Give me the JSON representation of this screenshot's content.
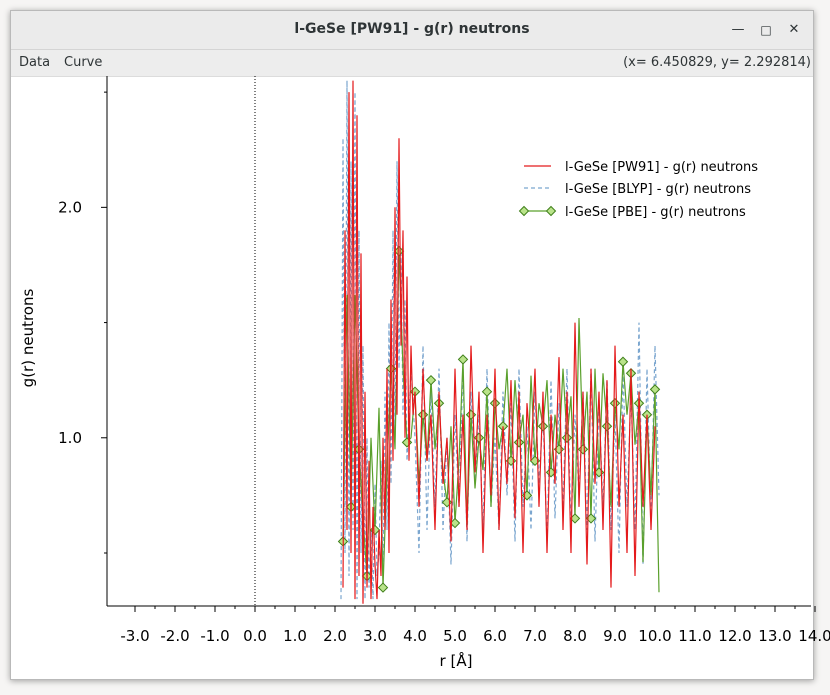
{
  "window": {
    "title": "l-GeSe [PW91] - g(r) neutrons",
    "minimize_glyph": "—",
    "maximize_glyph": "□",
    "close_glyph": "✕"
  },
  "menubar": {
    "items": [
      "Data",
      "Curve"
    ],
    "coordinates": "(x= 6.450829, y= 2.292814)"
  },
  "chart_data": {
    "type": "line",
    "title": "",
    "xlabel": "r [Å]",
    "ylabel": "g(r) neutrons",
    "xlim": [
      -3.7,
      13.9
    ],
    "ylim": [
      0.27,
      2.57
    ],
    "x_ticks": [
      -3.0,
      -2.0,
      -1.0,
      0.0,
      1.0,
      2.0,
      3.0,
      4.0,
      5.0,
      6.0,
      7.0,
      8.0,
      9.0,
      10.0,
      11.0,
      12.0,
      13.0,
      14.0
    ],
    "x_tick_labels": [
      "-3.0",
      "-2.0",
      "-1.0",
      "0.0",
      "1.0",
      "2.0",
      "3.0",
      "4.0",
      "5.0",
      "6.0",
      "7.0",
      "8.0",
      "9.0",
      "10.0",
      "11.0",
      "12.0",
      "13.0",
      "14.0"
    ],
    "y_ticks": [
      1.0,
      2.0
    ],
    "y_tick_labels": [
      "1.0",
      "2.0"
    ],
    "y_minor_ticks": [
      0.5,
      1.5,
      2.5
    ],
    "zero_line_x": 0.0,
    "grid": false,
    "legend_position": "top-right",
    "series": [
      {
        "name": "l-GeSe [PW91] - g(r) neutrons",
        "color": "#e41a1c",
        "style": "solid",
        "x": [
          2.2,
          2.25,
          2.3,
          2.35,
          2.4,
          2.45,
          2.5,
          2.55,
          2.6,
          2.65,
          2.7,
          2.75,
          2.8,
          2.85,
          2.9,
          2.95,
          3.0,
          3.05,
          3.1,
          3.15,
          3.2,
          3.25,
          3.3,
          3.35,
          3.4,
          3.45,
          3.5,
          3.55,
          3.6,
          3.65,
          3.7,
          3.75,
          3.8,
          3.85,
          3.9,
          3.95,
          4.0,
          4.1,
          4.2,
          4.3,
          4.4,
          4.5,
          4.6,
          4.7,
          4.8,
          4.9,
          5.0,
          5.1,
          5.2,
          5.3,
          5.4,
          5.5,
          5.6,
          5.7,
          5.8,
          5.9,
          6.0,
          6.1,
          6.2,
          6.3,
          6.4,
          6.5,
          6.6,
          6.7,
          6.8,
          6.9,
          7.0,
          7.1,
          7.2,
          7.3,
          7.4,
          7.5,
          7.6,
          7.7,
          7.8,
          7.9,
          8.0,
          8.1,
          8.2,
          8.3,
          8.4,
          8.5,
          8.6,
          8.7,
          8.8,
          8.9,
          9.0,
          9.1,
          9.2,
          9.3,
          9.4,
          9.5,
          9.6,
          9.7,
          9.8,
          9.9,
          10.0
        ],
        "y": [
          0.35,
          1.9,
          0.6,
          2.5,
          0.5,
          2.55,
          0.3,
          2.4,
          0.4,
          1.8,
          0.28,
          1.2,
          0.35,
          0.9,
          0.3,
          0.7,
          0.45,
          0.3,
          0.6,
          0.4,
          1.0,
          0.6,
          1.3,
          0.5,
          1.6,
          0.9,
          2.0,
          1.1,
          2.3,
          1.4,
          1.9,
          1.0,
          1.7,
          0.9,
          1.4,
          1.1,
          1.2,
          0.7,
          1.3,
          0.9,
          1.1,
          0.6,
          1.2,
          0.8,
          1.0,
          0.55,
          1.3,
          0.7,
          1.1,
          0.6,
          1.4,
          0.85,
          1.2,
          0.5,
          1.1,
          0.75,
          1.3,
          0.6,
          1.05,
          0.8,
          1.25,
          0.65,
          1.2,
          0.5,
          1.15,
          0.9,
          1.3,
          0.7,
          1.2,
          0.5,
          1.1,
          0.8,
          1.35,
          0.6,
          1.2,
          0.5,
          1.5,
          0.7,
          1.2,
          0.45,
          1.3,
          0.8,
          1.2,
          0.6,
          1.25,
          0.35,
          1.4,
          0.7,
          1.1,
          0.5,
          1.3,
          0.4,
          1.2,
          0.7,
          1.1,
          0.6,
          1.05
        ]
      },
      {
        "name": "l-GeSe [BLYP] - g(r) neutrons",
        "color": "#7ba6cf",
        "style": "dashed",
        "x": [
          2.15,
          2.2,
          2.25,
          2.3,
          2.35,
          2.4,
          2.45,
          2.5,
          2.55,
          2.6,
          2.65,
          2.7,
          2.75,
          2.8,
          2.85,
          2.9,
          2.95,
          3.0,
          3.05,
          3.1,
          3.15,
          3.2,
          3.25,
          3.3,
          3.35,
          3.4,
          3.45,
          3.5,
          3.55,
          3.6,
          3.65,
          3.7,
          3.75,
          3.8,
          3.9,
          4.0,
          4.1,
          4.2,
          4.3,
          4.4,
          4.5,
          4.6,
          4.7,
          4.8,
          4.9,
          5.0,
          5.1,
          5.2,
          5.3,
          5.4,
          5.5,
          5.6,
          5.7,
          5.8,
          5.9,
          6.0,
          6.1,
          6.2,
          6.3,
          6.4,
          6.5,
          6.6,
          6.7,
          6.8,
          6.9,
          7.0,
          7.1,
          7.2,
          7.3,
          7.4,
          7.5,
          7.6,
          7.7,
          7.8,
          7.9,
          8.0,
          8.1,
          8.2,
          8.3,
          8.4,
          8.5,
          8.6,
          8.7,
          8.8,
          8.9,
          9.0,
          9.1,
          9.2,
          9.3,
          9.4,
          9.5,
          9.6,
          9.7,
          9.8,
          9.9,
          10.0,
          10.1
        ],
        "y": [
          0.3,
          2.3,
          0.5,
          2.55,
          0.4,
          2.2,
          0.6,
          2.5,
          0.3,
          1.9,
          0.5,
          1.4,
          0.3,
          1.0,
          0.35,
          0.6,
          0.3,
          0.8,
          0.4,
          0.5,
          0.9,
          0.4,
          1.2,
          0.6,
          1.5,
          0.8,
          1.9,
          1.0,
          2.2,
          1.3,
          1.8,
          1.1,
          1.6,
          0.9,
          1.3,
          1.0,
          0.5,
          1.4,
          0.6,
          1.2,
          0.7,
          1.3,
          0.6,
          1.0,
          0.45,
          1.1,
          0.7,
          1.3,
          0.55,
          1.2,
          0.8,
          1.1,
          0.6,
          1.3,
          0.7,
          1.0,
          0.6,
          1.2,
          0.75,
          1.15,
          0.55,
          1.3,
          0.7,
          1.05,
          0.6,
          1.2,
          0.8,
          1.1,
          0.55,
          1.25,
          0.65,
          1.15,
          0.7,
          1.3,
          0.6,
          1.1,
          0.75,
          1.2,
          0.6,
          1.3,
          0.55,
          1.15,
          0.7,
          1.25,
          0.6,
          1.1,
          0.5,
          1.3,
          0.7,
          1.2,
          0.6,
          1.5,
          0.45,
          1.3,
          0.65,
          1.4,
          0.75
        ]
      },
      {
        "name": "l-GeSe [PBE] - g(r) neutrons",
        "color": "#5aa02c",
        "style": "solid-diamond",
        "x": [
          2.2,
          2.3,
          2.4,
          2.5,
          2.6,
          2.7,
          2.8,
          2.9,
          3.0,
          3.1,
          3.2,
          3.3,
          3.4,
          3.5,
          3.6,
          3.7,
          3.8,
          3.9,
          4.0,
          4.1,
          4.2,
          4.3,
          4.4,
          4.5,
          4.6,
          4.7,
          4.8,
          4.9,
          5.0,
          5.1,
          5.2,
          5.3,
          5.4,
          5.5,
          5.6,
          5.7,
          5.8,
          5.9,
          6.0,
          6.1,
          6.2,
          6.3,
          6.4,
          6.5,
          6.6,
          6.7,
          6.8,
          6.9,
          7.0,
          7.1,
          7.2,
          7.3,
          7.4,
          7.5,
          7.6,
          7.7,
          7.8,
          7.9,
          8.0,
          8.1,
          8.2,
          8.3,
          8.4,
          8.5,
          8.6,
          8.7,
          8.8,
          8.9,
          9.0,
          9.1,
          9.2,
          9.3,
          9.4,
          9.5,
          9.6,
          9.7,
          9.8,
          9.9,
          10.0,
          10.1
        ],
        "y": [
          0.55,
          1.62,
          0.7,
          1.62,
          0.95,
          0.65,
          0.4,
          1.0,
          0.6,
          1.13,
          0.35,
          0.87,
          1.3,
          0.95,
          1.81,
          1.3,
          0.98,
          1.0,
          1.2,
          0.8,
          1.1,
          0.9,
          1.25,
          0.95,
          1.15,
          0.85,
          0.72,
          1.05,
          0.63,
          0.9,
          1.34,
          0.62,
          1.1,
          0.78,
          1.0,
          0.86,
          1.2,
          0.7,
          1.15,
          0.95,
          1.05,
          1.3,
          0.9,
          1.25,
          0.98,
          1.1,
          0.75,
          1.27,
          0.9,
          1.15,
          1.05,
          1.25,
          0.85,
          1.1,
          0.95,
          1.3,
          1.0,
          1.18,
          0.65,
          1.52,
          0.95,
          1.2,
          0.65,
          1.3,
          0.85,
          1.28,
          1.05,
          0.7,
          1.15,
          0.95,
          1.33,
          1.1,
          1.28,
          0.97,
          1.15,
          0.46,
          1.1,
          0.75,
          1.21,
          0.33
        ]
      }
    ]
  }
}
